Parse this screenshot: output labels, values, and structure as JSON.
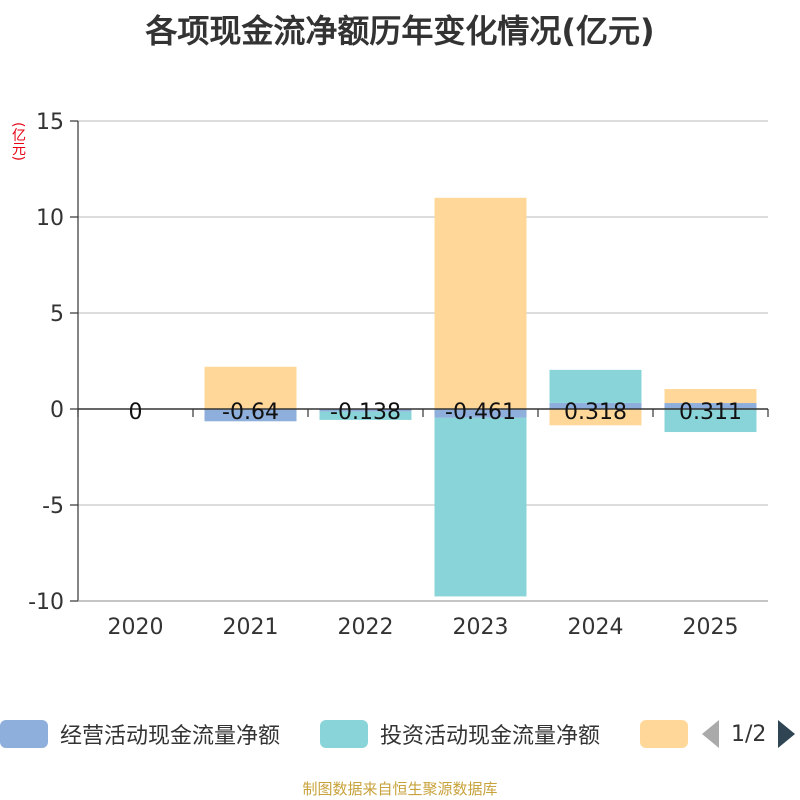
{
  "title": "各项现金流净额历年变化情况(亿元)",
  "unit": "(亿元)",
  "source": "制图数据来自恒生聚源数据库",
  "legend": {
    "items": [
      {
        "label": "经营活动现金流量净额",
        "color": "#8eaedb"
      },
      {
        "label": "投资活动现金流量净额",
        "color": "#88d4d8"
      },
      {
        "label": "",
        "color": "#ffd899"
      }
    ],
    "page": "1/2"
  },
  "chart_data": {
    "type": "bar",
    "stacked": true,
    "categories": [
      "2020",
      "2021",
      "2022",
      "2023",
      "2024",
      "2025"
    ],
    "ylim": [
      -10,
      15
    ],
    "yticks": [
      15,
      10,
      5,
      0,
      -5,
      -10
    ],
    "grid": true,
    "legend_position": "bottom",
    "series": [
      {
        "name": "经营活动现金流量净额",
        "color": "#8eaedb",
        "values": [
          0,
          -0.64,
          -0.138,
          -0.461,
          0.318,
          0.311
        ]
      },
      {
        "name": "投资活动现金流量净额",
        "color": "#88d4d8",
        "values": [
          0,
          0,
          -0.43,
          -9.3,
          1.72,
          -1.2
        ]
      },
      {
        "name": "",
        "color": "#ffd899",
        "values": [
          0,
          2.2,
          0,
          11.0,
          -0.85,
          0.73
        ]
      }
    ],
    "data_labels": [
      "0",
      "-0.64",
      "-0.138",
      "-0.461",
      "0.318",
      "0.311"
    ]
  }
}
